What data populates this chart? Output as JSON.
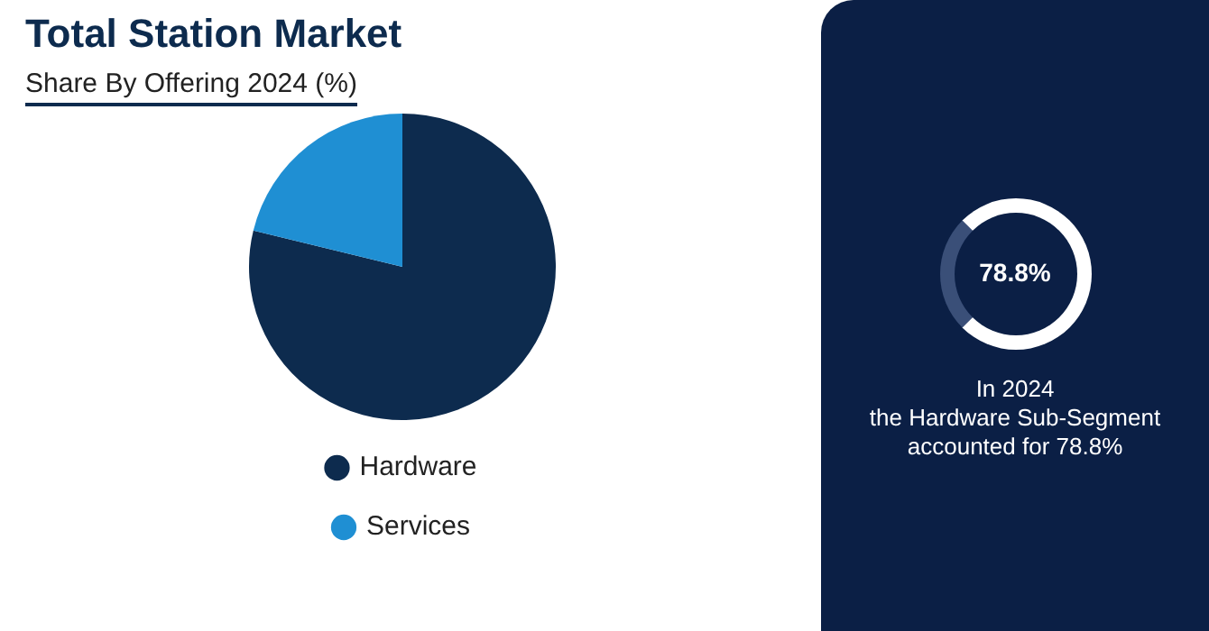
{
  "chart_data": {
    "type": "pie",
    "title": "Total Station Market",
    "subtitle": "Share By Offering 2024 (%)",
    "categories": [
      "Hardware",
      "Services"
    ],
    "values": [
      78.8,
      21.2
    ],
    "colors": [
      "#0d2b4e",
      "#1f8fd3"
    ],
    "legend": "bottom",
    "annotations": [
      "78.8%",
      "In 2024",
      "the Hardware Sub-Segment accounted for 78.8%"
    ]
  }
}
